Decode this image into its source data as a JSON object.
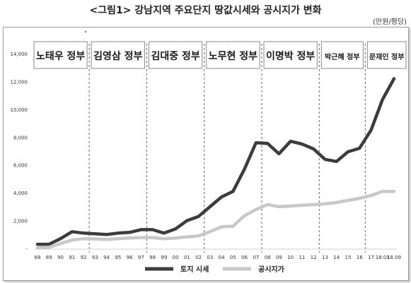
{
  "header": {
    "title": "<그림1> 강남지역 주요단지 땅값시세와 공시지가 변화",
    "unit": "(만원/평당)"
  },
  "chart_data": {
    "type": "line",
    "categories": [
      "88",
      "89",
      "90",
      "91",
      "92",
      "93",
      "94",
      "95",
      "96",
      "97",
      "98",
      "99",
      "00",
      "01",
      "02",
      "03",
      "04",
      "05",
      "06",
      "07",
      "08",
      "09",
      "10",
      "11",
      "12",
      "13",
      "14",
      "15",
      "16",
      "17",
      "18.01",
      "18.09"
    ],
    "series": [
      {
        "name": "토지 시세",
        "color": "#3c3c3c",
        "values": [
          300,
          300,
          700,
          1200,
          1100,
          1050,
          1000,
          1100,
          1150,
          1350,
          1350,
          1100,
          1400,
          2000,
          2300,
          3000,
          3700,
          4100,
          5700,
          7600,
          7550,
          6800,
          7700,
          7500,
          7150,
          6400,
          6250,
          6950,
          7200,
          8500,
          10700,
          12200
        ]
      },
      {
        "name": "공시지가",
        "color": "#c8c8c8",
        "values": [
          50,
          80,
          350,
          600,
          700,
          680,
          650,
          700,
          750,
          780,
          780,
          700,
          750,
          820,
          900,
          1200,
          1550,
          1600,
          2350,
          2800,
          3150,
          3000,
          3050,
          3100,
          3150,
          3200,
          3300,
          3450,
          3600,
          3800,
          4100,
          4100
        ]
      }
    ],
    "ylim": [
      0,
      14000
    ],
    "yticks": [
      "-",
      "2,000",
      "4,000",
      "6,000",
      "8,000",
      "10,000",
      "12,000",
      "14,000"
    ],
    "grid": false,
    "legend_position": "bottom",
    "eras": [
      {
        "label": "노태우 정부",
        "from": "88",
        "to": "92"
      },
      {
        "label": "김영삼 정부",
        "from": "93",
        "to": "97"
      },
      {
        "label": "김대중 정부",
        "from": "98",
        "to": "02"
      },
      {
        "label": "노무현 정부",
        "from": "03",
        "to": "07"
      },
      {
        "label": "이명박 정부",
        "from": "08",
        "to": "12"
      },
      {
        "label": "박근혜 정부",
        "from": "13",
        "to": "16"
      },
      {
        "label": "문재인 정부",
        "from": "17",
        "to": "18.09"
      }
    ]
  }
}
